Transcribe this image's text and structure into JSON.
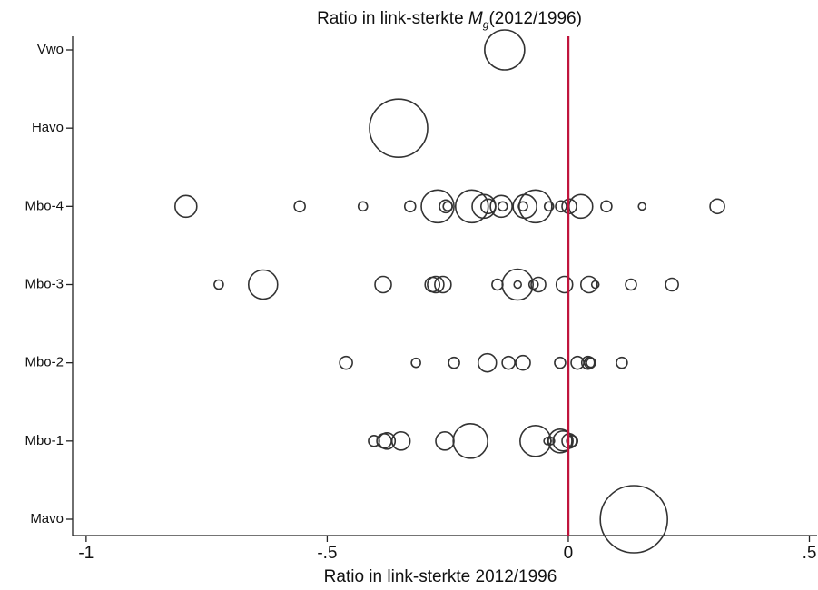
{
  "chart_data": {
    "type": "scatter",
    "title": [
      "Ratio in link-sterkte ",
      "M",
      "g",
      "(2012/1996)"
    ],
    "x_label": "Ratio in link-sterkte 2012/1996",
    "categories": [
      "Vwo",
      "Havo",
      "Mbo-4",
      "Mbo-3",
      "Mbo-2",
      "Mbo-1",
      "Mavo"
    ],
    "xlim": [
      -1.028,
      0.516
    ],
    "xticks": [
      -1,
      {
        "value": -0.5,
        "label": "-.5"
      },
      0,
      {
        "value": 0.5,
        "label": ".5"
      }
    ],
    "marker_color": "#333333",
    "reference_line": {
      "value": 0,
      "color": "#c0143c"
    },
    "groups": [
      {
        "x": [
          -0.132
        ],
        "size": [
          22
        ]
      },
      {
        "x": [
          -0.352
        ],
        "size": [
          32
        ]
      },
      {
        "x": [
          -0.793,
          -0.557,
          -0.426,
          -0.328,
          -0.254,
          -0.25,
          -0.271,
          -0.2,
          -0.175,
          -0.166,
          -0.139,
          -0.136,
          -0.094,
          -0.09,
          -0.068,
          -0.04,
          -0.015,
          0.002,
          0.026,
          0.079,
          0.153,
          0.309
        ],
        "size": [
          12,
          6,
          5,
          6,
          7,
          5,
          18,
          18,
          13,
          8,
          12,
          5,
          5,
          13,
          18,
          5,
          6,
          8,
          13,
          6,
          4,
          8
        ]
      },
      {
        "x": [
          -0.725,
          -0.633,
          -0.384,
          -0.282,
          -0.275,
          -0.26,
          -0.147,
          -0.105,
          -0.105,
          -0.072,
          -0.062,
          -0.008,
          0.043,
          0.056,
          0.13,
          0.215
        ],
        "size": [
          5,
          16,
          9,
          8,
          9,
          9,
          6,
          17,
          4,
          5,
          8,
          9,
          9,
          4,
          6,
          7
        ]
      },
      {
        "x": [
          -0.461,
          -0.316,
          -0.237,
          -0.168,
          -0.124,
          -0.094,
          -0.017,
          0.019,
          0.041,
          0.045,
          0.047,
          0.111
        ],
        "size": [
          7,
          5,
          6,
          10,
          7,
          8,
          6,
          7,
          7,
          6,
          5,
          6
        ]
      },
      {
        "x": [
          -0.403,
          -0.382,
          -0.376,
          -0.347,
          -0.256,
          -0.203,
          -0.068,
          -0.043,
          -0.036,
          -0.017,
          -0.011,
          0.002,
          0.008
        ],
        "size": [
          6,
          8,
          9,
          10,
          10,
          19,
          17,
          4,
          4,
          13,
          11,
          8,
          6
        ]
      },
      {
        "x": [
          0.136
        ],
        "size": [
          37
        ]
      }
    ]
  }
}
